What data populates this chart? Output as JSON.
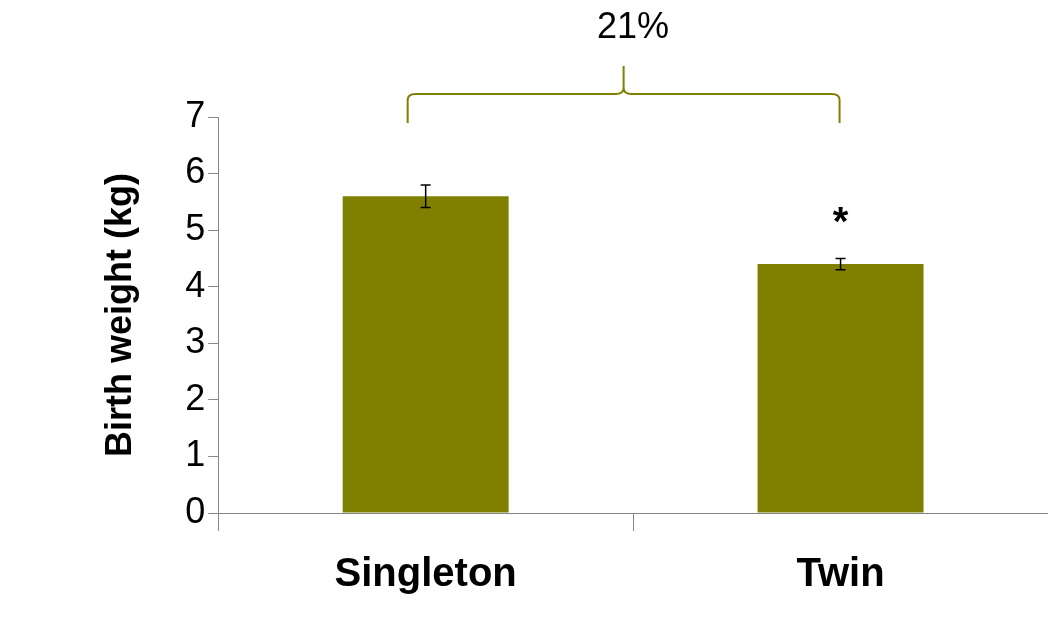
{
  "chart_data": {
    "type": "bar",
    "ylabel": "Birth weight (kg)",
    "categories": [
      "Singleton",
      "Twin"
    ],
    "values": [
      5.6,
      4.4
    ],
    "color": "#808000",
    "errors": [
      0.2,
      0.1
    ],
    "ylim": [
      0,
      7
    ],
    "yticks": [
      0,
      1,
      2,
      3,
      4,
      5,
      6,
      7
    ],
    "grid": false,
    "legend": false,
    "annotations": [
      "21%",
      "*"
    ]
  }
}
